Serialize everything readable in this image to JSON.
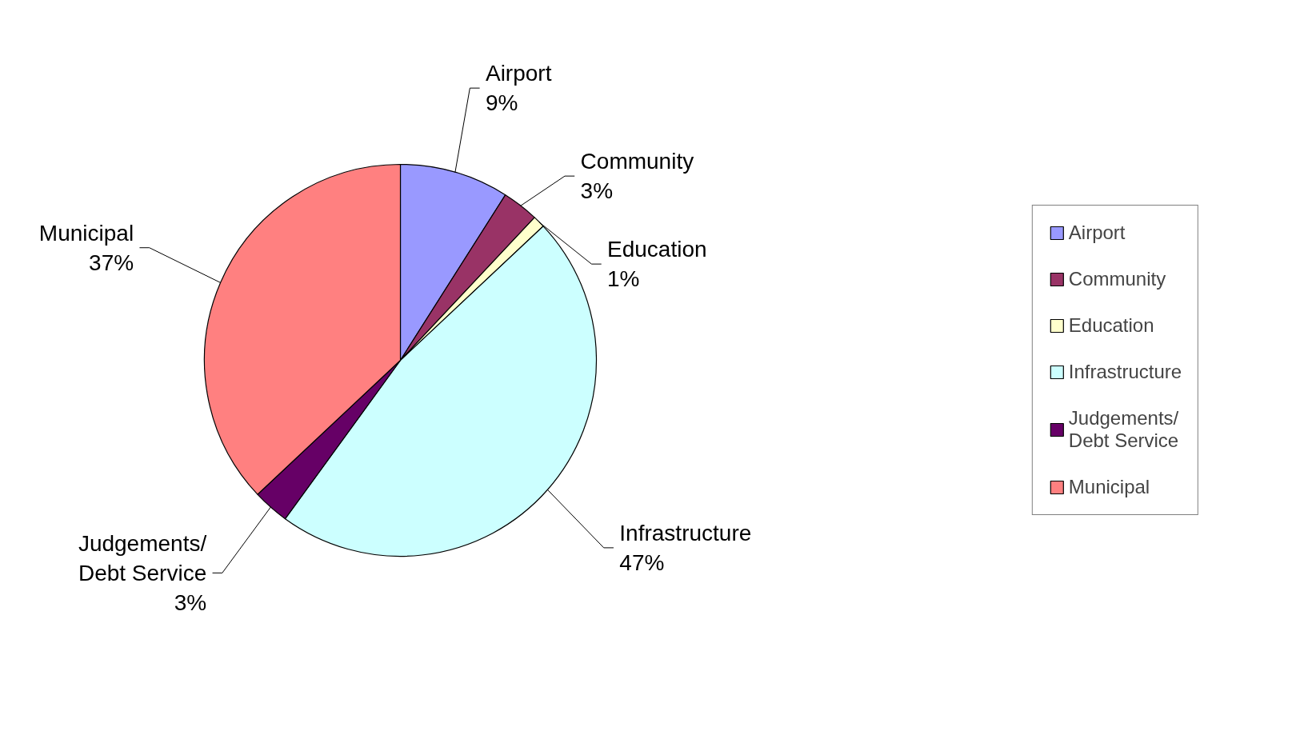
{
  "chart_data": {
    "type": "pie",
    "categories": [
      "Airport",
      "Community",
      "Education",
      "Infrastructure",
      "Judgements/ Debt Service",
      "Municipal"
    ],
    "values": [
      9,
      3,
      1,
      47,
      3,
      37
    ],
    "value_labels": [
      "9%",
      "3%",
      "1%",
      "47%",
      "3%",
      "37%"
    ],
    "colors": [
      "#9999ff",
      "#993366",
      "#ffffcc",
      "#ccffff",
      "#660066",
      "#ff8080"
    ],
    "legend": "right"
  }
}
